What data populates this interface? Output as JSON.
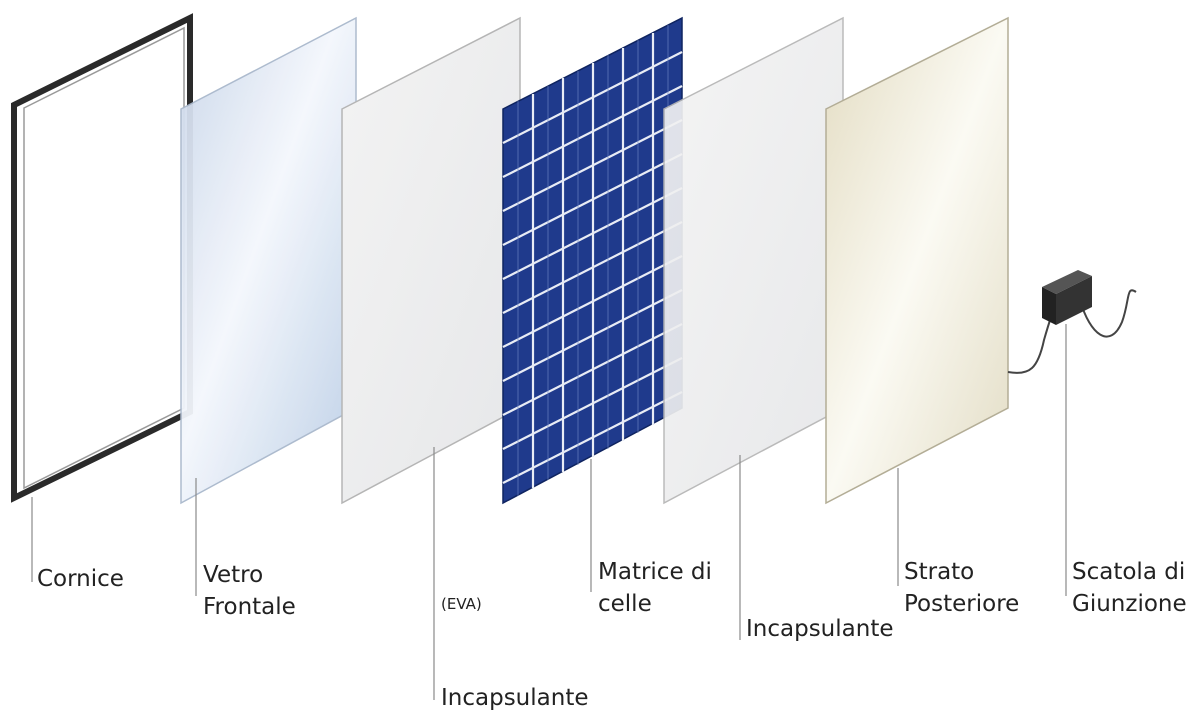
{
  "layers": [
    {
      "id": "cornice",
      "label_lines": [
        "Cornice"
      ]
    },
    {
      "id": "vetro",
      "label_lines": [
        "Vetro",
        "Frontale"
      ]
    },
    {
      "id": "eva",
      "label_lines": [
        "Incapsulante"
      ],
      "note": "(EVA)"
    },
    {
      "id": "celle",
      "label_lines": [
        "Matrice di",
        "celle"
      ]
    },
    {
      "id": "incapsulante2",
      "label_lines": [
        "Incapsulante"
      ]
    },
    {
      "id": "strato",
      "label_lines": [
        "Strato",
        "Posteriore"
      ]
    },
    {
      "id": "scatola",
      "label_lines": [
        "Scatola di",
        "Giunzione"
      ]
    }
  ],
  "colors": {
    "frame": "#2a2a2a",
    "cell": "#1f3a8c",
    "cell_grid": "#e8ecf5",
    "leader": "#8a8a8a",
    "panel_edge": "#b5b5b5"
  }
}
